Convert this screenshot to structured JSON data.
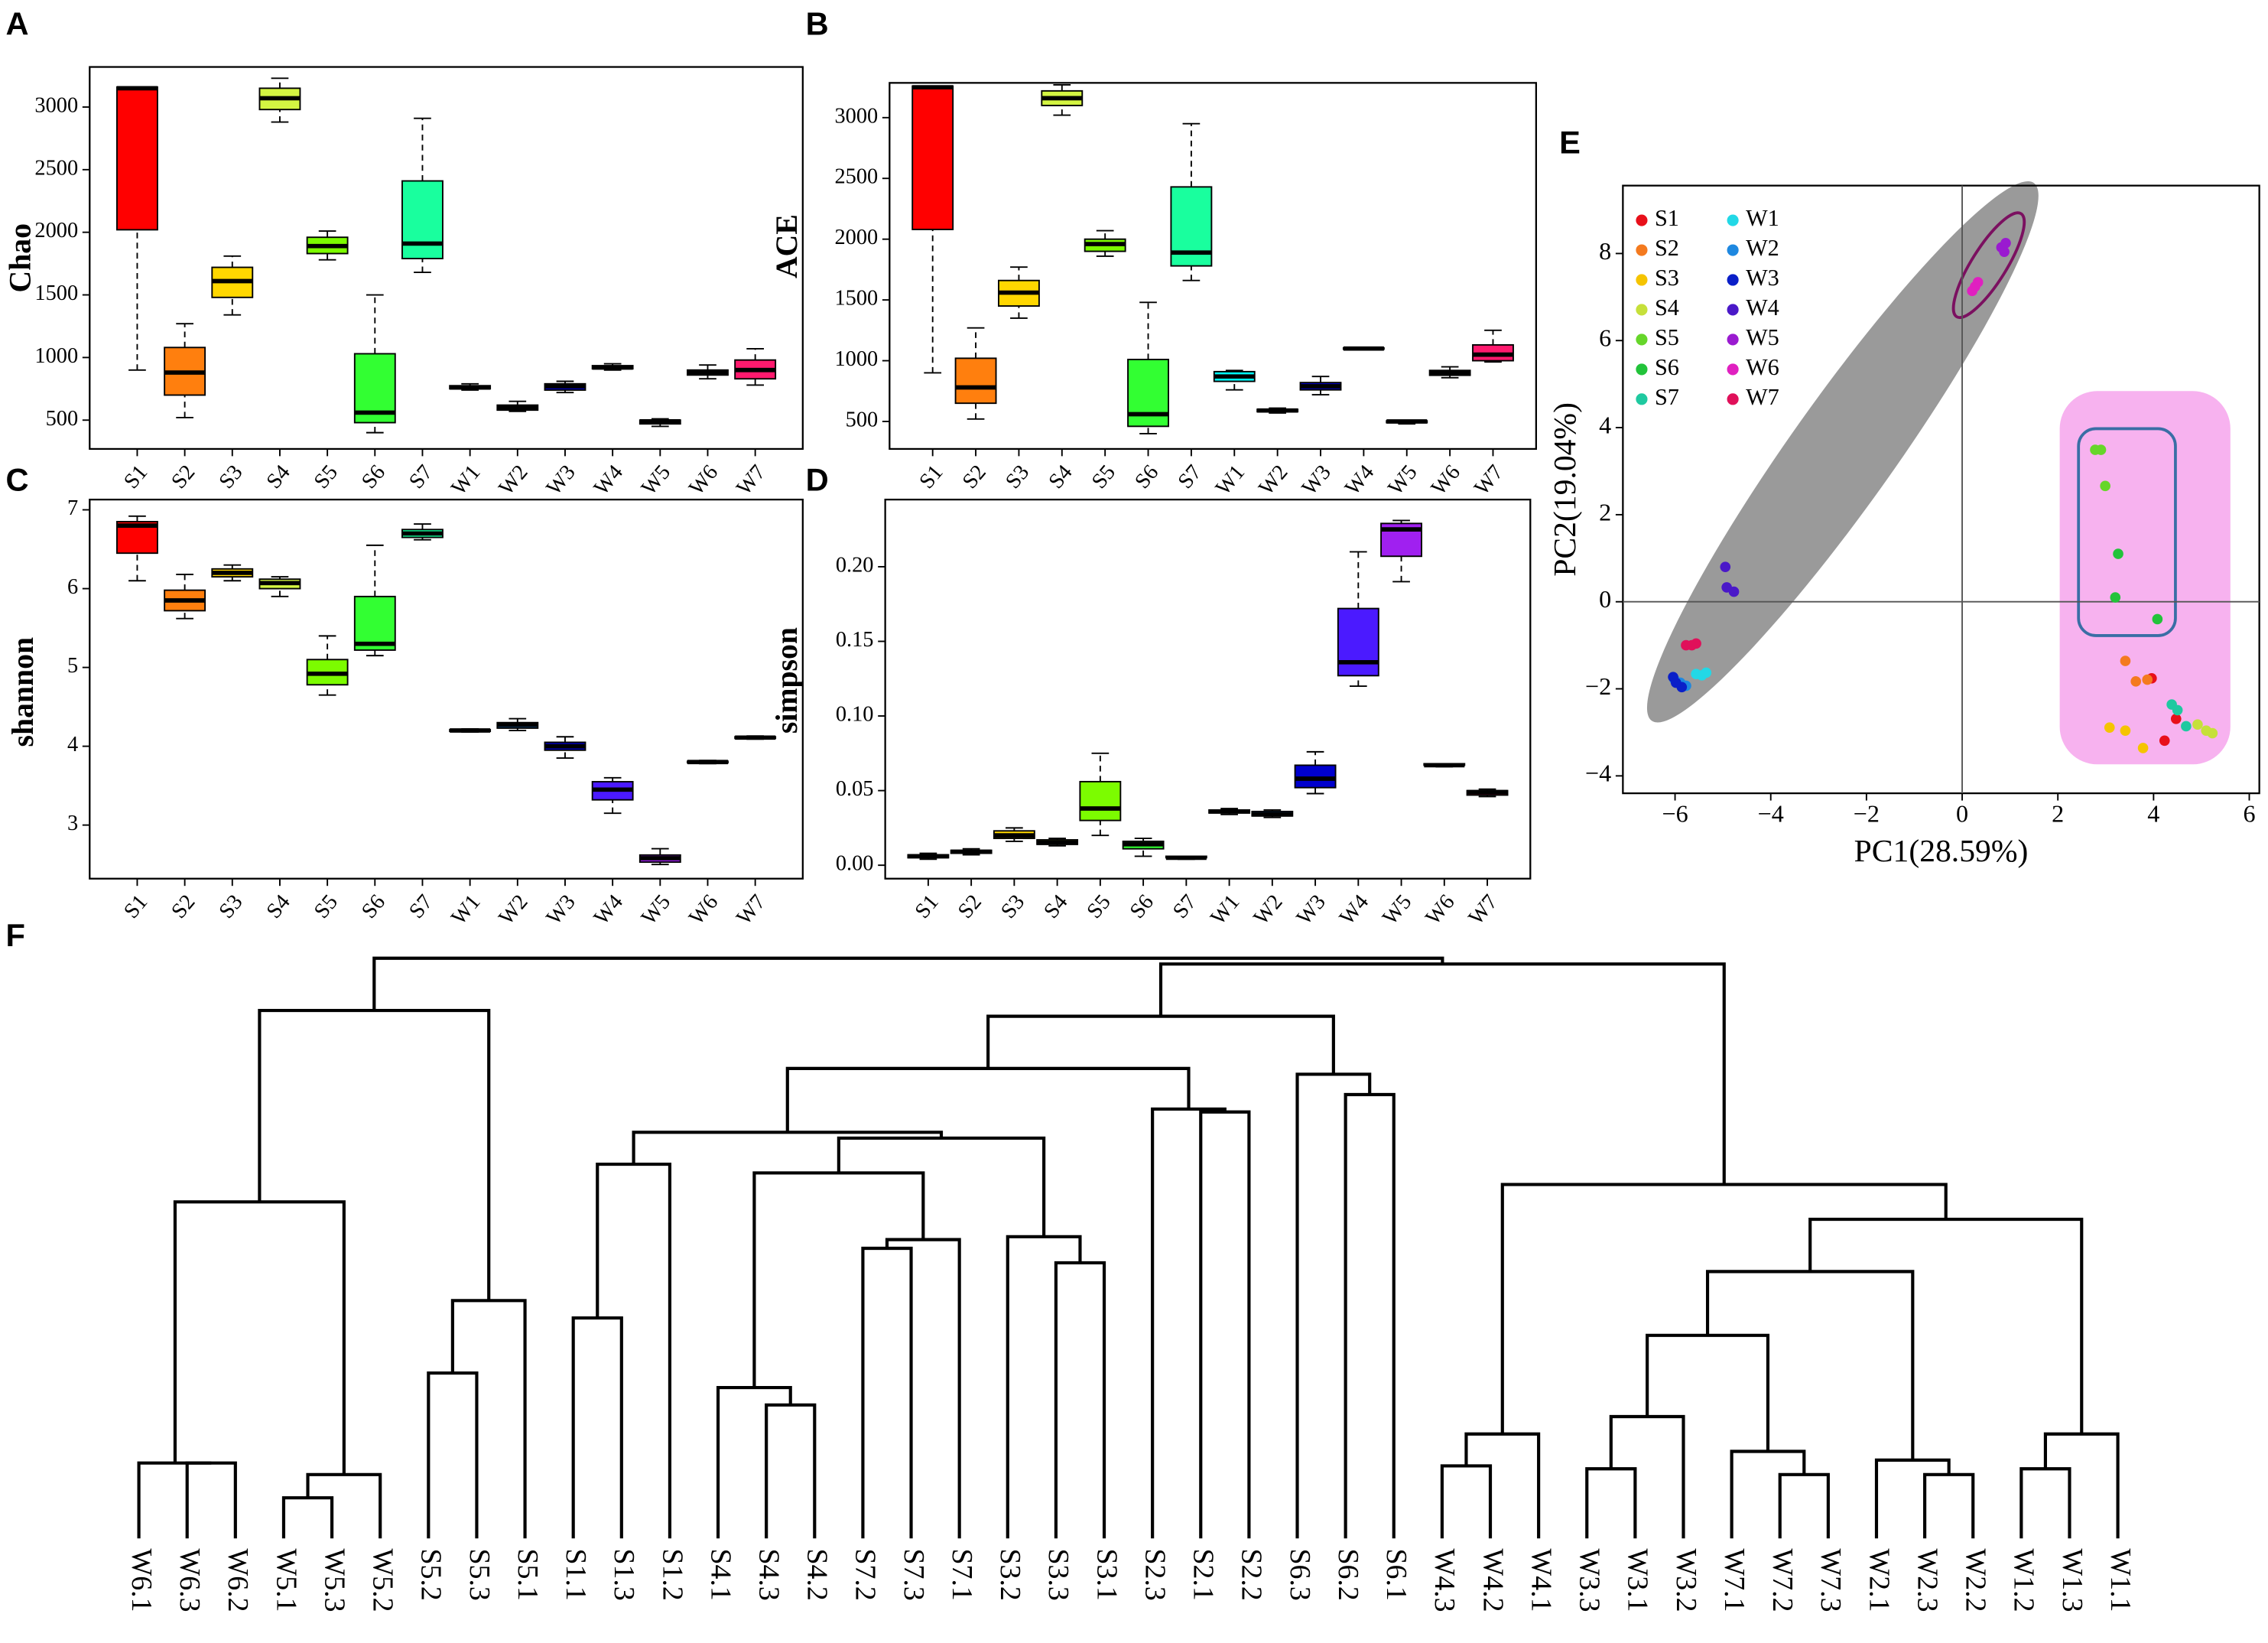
{
  "chart_data": [
    {
      "type": "box",
      "panel": "A",
      "ylabel": "Chao",
      "categories": [
        "S1",
        "S2",
        "S3",
        "S4",
        "S5",
        "S6",
        "S7",
        "W1",
        "W2",
        "W3",
        "W4",
        "W5",
        "W6",
        "W7"
      ],
      "colors": [
        "#ff0000",
        "#ff7f0e",
        "#ffd700",
        "#d4f542",
        "#7cfc00",
        "#32ff32",
        "#19ff9e",
        "#00ffff",
        "#1e90ff",
        "#0000cd",
        "#4b1aff",
        "#a020f0",
        "#ff00cc",
        "#ff1a6e"
      ],
      "min": [
        900,
        520,
        1340,
        2880,
        1780,
        400,
        1680,
        740,
        570,
        720,
        900,
        450,
        830,
        780
      ],
      "q1": [
        2020,
        700,
        1480,
        2980,
        1830,
        480,
        1790,
        750,
        580,
        740,
        910,
        470,
        860,
        830
      ],
      "median": [
        3150,
        880,
        1610,
        3070,
        1890,
        560,
        1910,
        760,
        600,
        770,
        920,
        490,
        880,
        900
      ],
      "q3": [
        3160,
        1080,
        1720,
        3150,
        1960,
        1030,
        2410,
        775,
        620,
        790,
        935,
        500,
        900,
        980
      ],
      "max": [
        3160,
        1270,
        1810,
        3230,
        2010,
        1500,
        2910,
        790,
        650,
        810,
        950,
        510,
        940,
        1070
      ],
      "ylim": [
        270,
        3320
      ],
      "yticks": [
        500,
        1000,
        1500,
        2000,
        2500,
        3000
      ]
    },
    {
      "type": "box",
      "panel": "B",
      "ylabel": "ACE",
      "categories": [
        "S1",
        "S2",
        "S3",
        "S4",
        "S5",
        "S6",
        "S7",
        "W1",
        "W2",
        "W3",
        "W4",
        "W5",
        "W6",
        "W7"
      ],
      "colors": [
        "#ff0000",
        "#ff7f0e",
        "#ffd700",
        "#d4f542",
        "#7cfc00",
        "#32ff32",
        "#19ff9e",
        "#00ffff",
        "#1e90ff",
        "#0000cd",
        "#4b1aff",
        "#a020f0",
        "#ff00cc",
        "#ff1a6e"
      ],
      "min": [
        900,
        520,
        1350,
        3020,
        1860,
        400,
        1660,
        760,
        570,
        720,
        1090,
        480,
        860,
        990
      ],
      "q1": [
        2080,
        650,
        1450,
        3100,
        1900,
        460,
        1780,
        830,
        580,
        760,
        1095,
        490,
        880,
        1000
      ],
      "median": [
        3250,
        780,
        1560,
        3160,
        1960,
        560,
        1890,
        870,
        590,
        790,
        1100,
        500,
        900,
        1050
      ],
      "q3": [
        3260,
        1020,
        1660,
        3220,
        2000,
        1010,
        2430,
        910,
        600,
        820,
        1105,
        505,
        920,
        1130
      ],
      "max": [
        3260,
        1270,
        1770,
        3270,
        2070,
        1480,
        2950,
        920,
        610,
        870,
        1110,
        510,
        950,
        1250
      ],
      "ylim": [
        274,
        3286
      ],
      "yticks": [
        500,
        1000,
        1500,
        2000,
        2500,
        3000
      ]
    },
    {
      "type": "box",
      "panel": "C",
      "ylabel": "shannon",
      "categories": [
        "S1",
        "S2",
        "S3",
        "S4",
        "S5",
        "S6",
        "S7",
        "W1",
        "W2",
        "W3",
        "W4",
        "W5",
        "W6",
        "W7"
      ],
      "colors": [
        "#ff0000",
        "#ff7f0e",
        "#ffd700",
        "#d4f542",
        "#7cfc00",
        "#32ff32",
        "#19ff9e",
        "#00ffff",
        "#1e90ff",
        "#0000cd",
        "#4b1aff",
        "#a020f0",
        "#ff00cc",
        "#ff1a6e"
      ],
      "min": [
        6.1,
        5.62,
        6.1,
        5.9,
        4.65,
        5.15,
        6.62,
        4.18,
        4.2,
        3.85,
        3.15,
        2.5,
        3.78,
        4.09
      ],
      "q1": [
        6.45,
        5.72,
        6.15,
        6.0,
        4.78,
        5.22,
        6.65,
        4.19,
        4.23,
        3.95,
        3.32,
        2.53,
        3.79,
        4.1
      ],
      "median": [
        6.8,
        5.85,
        6.2,
        6.07,
        4.92,
        5.3,
        6.7,
        4.2,
        4.27,
        4.0,
        3.45,
        2.58,
        3.8,
        4.11
      ],
      "q3": [
        6.85,
        5.98,
        6.25,
        6.12,
        5.1,
        5.9,
        6.75,
        4.21,
        4.3,
        4.05,
        3.55,
        2.62,
        3.81,
        4.12
      ],
      "max": [
        6.92,
        6.18,
        6.3,
        6.15,
        5.4,
        6.55,
        6.82,
        4.22,
        4.35,
        4.12,
        3.6,
        2.7,
        3.82,
        4.13
      ],
      "ylim": [
        2.32,
        7.13
      ],
      "yticks": [
        3,
        4,
        5,
        6,
        7
      ]
    },
    {
      "type": "box",
      "panel": "D",
      "ylabel": "simpson",
      "categories": [
        "S1",
        "S2",
        "S3",
        "S4",
        "S5",
        "S6",
        "S7",
        "W1",
        "W2",
        "W3",
        "W4",
        "W5",
        "W6",
        "W7"
      ],
      "colors": [
        "#ff0000",
        "#ff7f0e",
        "#ffd700",
        "#d4f542",
        "#7cfc00",
        "#32ff32",
        "#19ff9e",
        "#00ffff",
        "#1e90ff",
        "#0000cd",
        "#4b1aff",
        "#a020f0",
        "#ff00cc",
        "#ff1a6e"
      ],
      "min": [
        0.004,
        0.007,
        0.016,
        0.013,
        0.02,
        0.006,
        0.004,
        0.034,
        0.032,
        0.048,
        0.12,
        0.19,
        0.066,
        0.046
      ],
      "q1": [
        0.005,
        0.008,
        0.018,
        0.014,
        0.03,
        0.011,
        0.005,
        0.035,
        0.033,
        0.052,
        0.127,
        0.207,
        0.067,
        0.047
      ],
      "median": [
        0.006,
        0.009,
        0.02,
        0.015,
        0.038,
        0.014,
        0.005,
        0.036,
        0.034,
        0.058,
        0.136,
        0.225,
        0.067,
        0.049
      ],
      "q3": [
        0.007,
        0.01,
        0.023,
        0.017,
        0.056,
        0.016,
        0.006,
        0.037,
        0.036,
        0.067,
        0.172,
        0.229,
        0.068,
        0.05
      ],
      "max": [
        0.008,
        0.011,
        0.025,
        0.018,
        0.075,
        0.018,
        0.006,
        0.038,
        0.037,
        0.076,
        0.21,
        0.231,
        0.068,
        0.051
      ],
      "ylim": [
        -0.009,
        0.245
      ],
      "yticks": [
        {
          "value": 0,
          "label": "0.00"
        },
        {
          "value": 0.05,
          "label": "0.05"
        },
        {
          "value": 0.1,
          "label": "0.10"
        },
        {
          "value": 0.15,
          "label": "0.15"
        },
        {
          "value": 0.2,
          "label": "0.20"
        }
      ]
    },
    {
      "type": "scatter",
      "panel": "E",
      "xlabel": "PC1(28.59%)",
      "ylabel": "PC2(19.04%)",
      "xlim": [
        -7.09,
        6.21
      ],
      "ylim": [
        -4.4,
        9.56
      ],
      "xticks": [
        {
          "value": -6,
          "label": "−6"
        },
        {
          "value": -4,
          "label": "−4"
        },
        {
          "value": -2,
          "label": "−2"
        },
        0,
        2,
        4,
        6
      ],
      "yticks": [
        {
          "value": -4,
          "label": "−4"
        },
        {
          "value": -2,
          "label": "−2"
        },
        0,
        2,
        4,
        6,
        8
      ],
      "series": [
        {
          "name": "S1",
          "color": "#e8101a",
          "x": [
            4.23,
            4.47,
            3.96
          ],
          "y": [
            -3.19,
            -2.69,
            -1.76
          ]
        },
        {
          "name": "S2",
          "color": "#f47a1f",
          "x": [
            3.41,
            3.63,
            3.87
          ],
          "y": [
            -1.36,
            -1.83,
            -1.79
          ]
        },
        {
          "name": "S3",
          "color": "#f5c400",
          "x": [
            3.08,
            3.41,
            3.78
          ],
          "y": [
            -2.89,
            -2.96,
            -3.36
          ]
        },
        {
          "name": "S4",
          "color": "#c6e03a",
          "x": [
            4.92,
            5.1,
            5.23
          ],
          "y": [
            -2.82,
            -2.96,
            -3.02
          ]
        },
        {
          "name": "S5",
          "color": "#66d62a",
          "x": [
            2.78,
            2.9,
            2.99
          ],
          "y": [
            3.49,
            3.49,
            2.66
          ]
        },
        {
          "name": "S6",
          "color": "#22c33a",
          "x": [
            3.26,
            3.2,
            4.08
          ],
          "y": [
            1.1,
            0.1,
            -0.4
          ]
        },
        {
          "name": "S7",
          "color": "#1fc9a0",
          "x": [
            4.38,
            4.5,
            4.68
          ],
          "y": [
            -2.36,
            -2.49,
            -2.86
          ]
        },
        {
          "name": "W1",
          "color": "#22d8e6",
          "x": [
            -5.56,
            -5.44,
            -5.35
          ],
          "y": [
            -1.66,
            -1.69,
            -1.63
          ]
        },
        {
          "name": "W2",
          "color": "#1e88e0",
          "x": [
            -6.01,
            -5.89,
            -5.77
          ],
          "y": [
            -1.79,
            -1.86,
            -1.93
          ]
        },
        {
          "name": "W3",
          "color": "#0a1fc8",
          "x": [
            -6.04,
            -5.86,
            -5.98
          ],
          "y": [
            -1.73,
            -1.96,
            -1.86
          ]
        },
        {
          "name": "W4",
          "color": "#4a18c8",
          "x": [
            -4.95,
            -4.92,
            -4.77
          ],
          "y": [
            0.8,
            0.33,
            0.23
          ]
        },
        {
          "name": "W5",
          "color": "#9a1ad0",
          "x": [
            0.82,
            0.91,
            0.88
          ],
          "y": [
            8.14,
            8.24,
            8.04
          ]
        },
        {
          "name": "W6",
          "color": "#e020c0",
          "x": [
            0.21,
            0.33,
            0.27
          ],
          "y": [
            7.14,
            7.34,
            7.24
          ]
        },
        {
          "name": "W7",
          "color": "#e0105a",
          "x": [
            -5.77,
            -5.65,
            -5.56
          ],
          "y": [
            -1.0,
            -1.0,
            -0.96
          ]
        }
      ]
    },
    {
      "type": "dendrogram",
      "panel": "F",
      "leaves": [
        "W6.1",
        "W6.3",
        "W6.2",
        "W5.1",
        "W5.3",
        "W5.2",
        "S5.2",
        "S5.3",
        "S5.1",
        "S1.1",
        "S1.3",
        "S1.2",
        "S4.1",
        "S4.3",
        "S4.2",
        "S7.2",
        "S7.3",
        "S7.1",
        "S3.2",
        "S3.3",
        "S3.1",
        "S2.3",
        "S2.1",
        "S2.2",
        "S6.3",
        "S6.2",
        "S6.1",
        "W4.3",
        "W4.2",
        "W4.1",
        "W3.3",
        "W3.1",
        "W3.2",
        "W7.1",
        "W7.2",
        "W7.3",
        "W2.1",
        "W2.3",
        "W2.2",
        "W1.2",
        "W1.3",
        "W1.1"
      ],
      "leaf_colors": [
        "#6b9a2a",
        "#6b9a2a",
        "#6b9a2a",
        "#d6337f",
        "#d6337f",
        "#d6337f",
        "#f28e1c",
        "#f28e1c",
        "#f28e1c",
        "#d7262e",
        "#d7262e",
        "#d7262e",
        "#8a4fa0",
        "#8a4fa0",
        "#8a4fa0",
        "#e97fb4",
        "#e97fb4",
        "#e97fb4",
        "#4caf50",
        "#4caf50",
        "#4caf50",
        "#2f7fc1",
        "#2f7fc1",
        "#2f7fc1",
        "#a0522d",
        "#a0522d",
        "#a0522d",
        "#7b6fb5",
        "#7b6fb5",
        "#7b6fb5",
        "#d2691e",
        "#d2691e",
        "#d2691e",
        "#e0b000",
        "#e0b000",
        "#e0b000",
        "#169b7a",
        "#169b7a",
        "#169b7a",
        "#a0a0a0",
        "#a0a0a0",
        "#a0a0a0"
      ],
      "merges": [
        [
          1,
          2,
          0.13
        ],
        [
          0,
          42,
          0.13
        ],
        [
          3,
          4,
          0.07
        ],
        [
          44,
          5,
          0.11
        ],
        [
          43,
          45,
          0.58
        ],
        [
          6,
          7,
          0.285
        ],
        [
          47,
          8,
          0.41
        ],
        [
          46,
          48,
          0.91
        ],
        [
          9,
          10,
          0.38
        ],
        [
          50,
          11,
          0.645
        ],
        [
          13,
          14,
          0.23
        ],
        [
          12,
          52,
          0.26
        ],
        [
          15,
          16,
          0.5
        ],
        [
          54,
          17,
          0.515
        ],
        [
          53,
          55,
          0.63
        ],
        [
          19,
          20,
          0.475
        ],
        [
          18,
          57,
          0.52
        ],
        [
          56,
          58,
          0.69
        ],
        [
          51,
          59,
          0.7
        ],
        [
          22,
          23,
          0.735
        ],
        [
          21,
          61,
          0.74
        ],
        [
          60,
          62,
          0.81
        ],
        [
          25,
          26,
          0.765
        ],
        [
          24,
          64,
          0.8
        ],
        [
          63,
          65,
          0.9
        ],
        [
          27,
          28,
          0.125
        ],
        [
          67,
          29,
          0.18
        ],
        [
          30,
          31,
          0.12
        ],
        [
          69,
          32,
          0.21
        ],
        [
          34,
          35,
          0.11
        ],
        [
          33,
          71,
          0.15
        ],
        [
          70,
          72,
          0.35
        ],
        [
          37,
          38,
          0.11
        ],
        [
          36,
          74,
          0.135
        ],
        [
          39,
          40,
          0.12
        ],
        [
          76,
          41,
          0.18
        ],
        [
          73,
          75,
          0.46
        ],
        [
          78,
          77,
          0.55
        ],
        [
          68,
          79,
          0.61
        ],
        [
          66,
          80,
          0.99
        ],
        [
          49,
          81,
          1.0
        ]
      ]
    }
  ]
}
